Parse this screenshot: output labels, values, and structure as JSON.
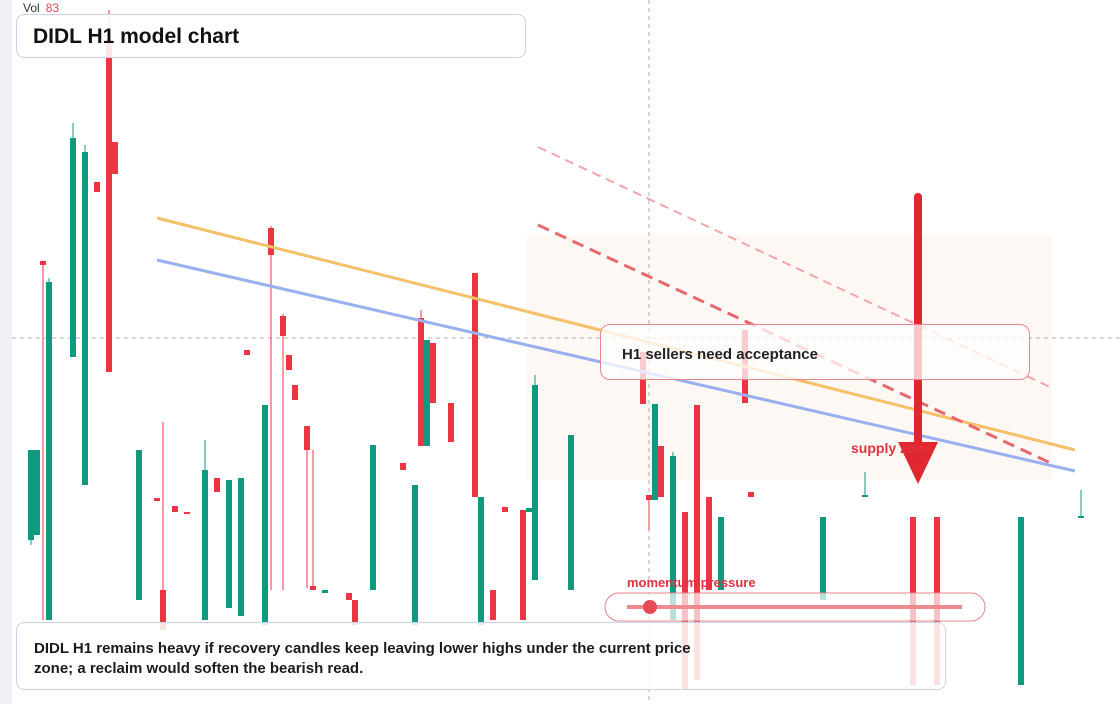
{
  "chart_data": {
    "type": "candlestick",
    "title": "DIDL H1 model chart",
    "volume_label": "Vol",
    "volume_value": "83",
    "annotations": [
      "H1 sellers need acceptance",
      "supply zone",
      "momentum pressure"
    ],
    "note": "DIDL H1 remains heavy if recovery candles keep leaving lower highs under the current price zone; a reclaim would soften the bearish read.",
    "up_color": "#0f9a7f",
    "down_color": "#eb3542",
    "xlim": [
      -3,
      181
    ],
    "ylim": [
      0,
      704
    ],
    "x": [
      0,
      1,
      2,
      3,
      7,
      9,
      11,
      13,
      14,
      18,
      21,
      22,
      24,
      26,
      29,
      31,
      33,
      35,
      36,
      39,
      40,
      42,
      43,
      44,
      46,
      47,
      49,
      53,
      54,
      57,
      62,
      64,
      65,
      66,
      67,
      70,
      74,
      75,
      77,
      79,
      82,
      83,
      84,
      90,
      102,
      103,
      104,
      105,
      107,
      109,
      111,
      113,
      115,
      119,
      120,
      132,
      139,
      147,
      151,
      165,
      175
    ],
    "open": [
      164,
      169,
      443,
      84,
      347,
      219,
      522,
      664,
      562,
      104,
      206,
      114,
      198,
      192,
      84,
      226,
      96,
      88,
      354,
      79,
      476,
      388,
      349,
      319,
      278,
      118,
      111,
      111,
      104,
      114,
      241,
      79,
      386,
      258,
      361,
      301,
      431,
      79,
      114,
      197,
      194,
      192,
      124,
      114,
      352,
      209,
      204,
      258,
      84,
      192,
      299,
      207,
      114,
      374,
      212,
      104,
      207,
      187,
      187,
      19,
      186
    ],
    "high": [
      254,
      254,
      443,
      426,
      581,
      559,
      522,
      694,
      562,
      254,
      206,
      282,
      198,
      192,
      264,
      226,
      224,
      226,
      354,
      299,
      478,
      390,
      349,
      319,
      278,
      254,
      114,
      111,
      104,
      259,
      241,
      219,
      394,
      364,
      361,
      301,
      431,
      207,
      114,
      197,
      194,
      196,
      329,
      269,
      352,
      209,
      300,
      258,
      252,
      192,
      299,
      207,
      187,
      374,
      212,
      187,
      232,
      187,
      187,
      187,
      214
    ],
    "low": [
      159,
      169,
      84,
      84,
      347,
      219,
      512,
      332,
      530,
      104,
      203,
      74,
      192,
      190,
      84,
      212,
      96,
      88,
      349,
      79,
      114,
      114,
      334,
      304,
      116,
      114,
      111,
      104,
      79,
      114,
      234,
      79,
      258,
      258,
      301,
      262,
      207,
      79,
      84,
      192,
      84,
      192,
      124,
      114,
      300,
      174,
      204,
      207,
      84,
      14,
      24,
      114,
      114,
      301,
      207,
      104,
      207,
      19,
      19,
      19,
      186
    ],
    "close": [
      254,
      254,
      439,
      422,
      566,
      552,
      512,
      332,
      530,
      254,
      203,
      74,
      192,
      190,
      234,
      212,
      224,
      226,
      349,
      299,
      449,
      368,
      334,
      304,
      254,
      114,
      114,
      104,
      79,
      259,
      234,
      219,
      258,
      364,
      301,
      262,
      207,
      207,
      84,
      192,
      84,
      196,
      319,
      269,
      300,
      204,
      300,
      207,
      248,
      14,
      24,
      114,
      187,
      301,
      207,
      187,
      209,
      19,
      19,
      187,
      188
    ]
  }
}
